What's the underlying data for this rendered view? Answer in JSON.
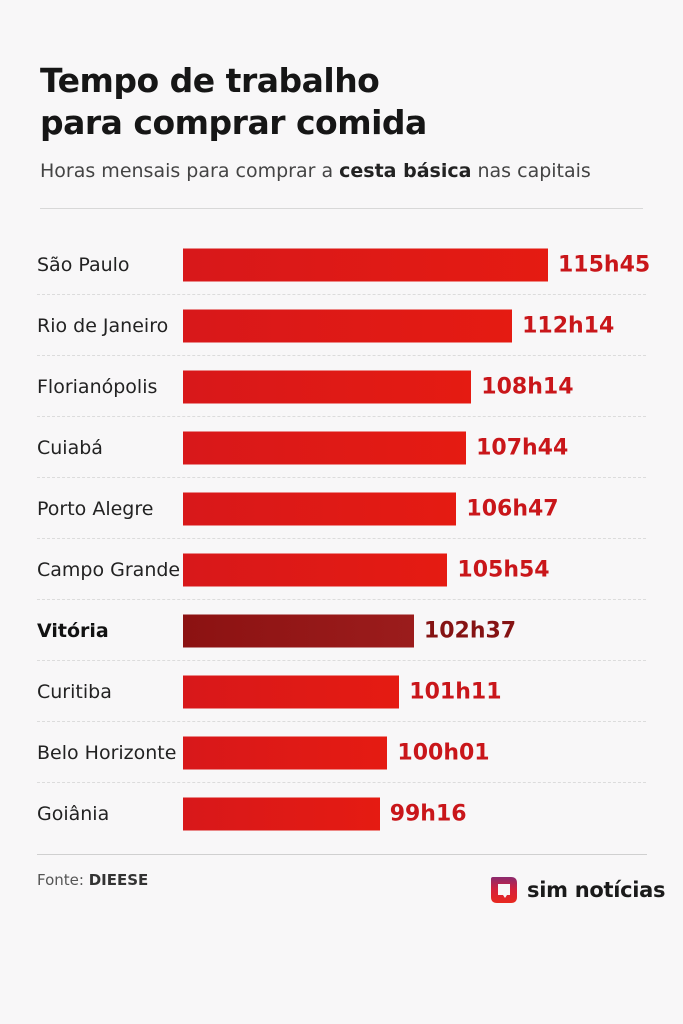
{
  "header": {
    "title_line1": "Tempo de trabalho",
    "title_line2": "para comprar comida",
    "subtitle_pre": "Horas mensais para comprar a ",
    "subtitle_bold": "cesta básica",
    "subtitle_post": " nas capitais"
  },
  "chart_data": {
    "type": "bar",
    "orientation": "horizontal",
    "title": "Tempo de trabalho para comprar comida",
    "subtitle": "Horas mensais para comprar a cesta básica nas capitais",
    "xlabel": "",
    "ylabel": "",
    "xlim": [
      80,
      116
    ],
    "categories": [
      "São Paulo",
      "Rio de Janeiro",
      "Florianópolis",
      "Cuiabá",
      "Porto Alegre",
      "Campo Grande",
      "Vitória",
      "Curitiba",
      "Belo Horizonte",
      "Goiânia"
    ],
    "values_hours": [
      115.75,
      112.233,
      108.233,
      107.733,
      106.783,
      105.9,
      102.617,
      101.183,
      100.017,
      99.267
    ],
    "value_labels": [
      "115h45",
      "112h14",
      "108h14",
      "107h44",
      "106h47",
      "105h54",
      "102h37",
      "101h11",
      "100h01",
      "99h16"
    ],
    "highlight": "Vitória",
    "colors": {
      "bar": "#e01a14",
      "highlight_bar": "#931717",
      "value": "#c9161a",
      "highlight_value": "#851313"
    }
  },
  "footer": {
    "source_label": "Fonte: ",
    "source_name": "DIEESE",
    "brand": "sim notícias"
  }
}
